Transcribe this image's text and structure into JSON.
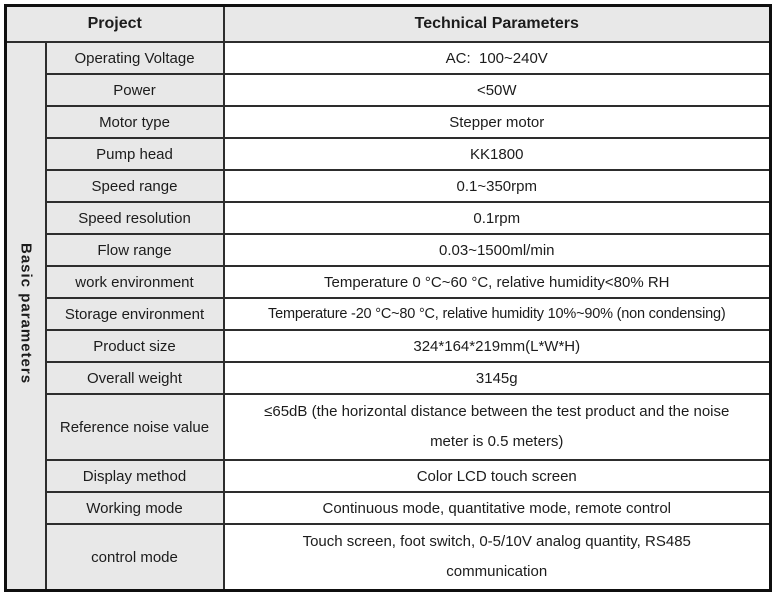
{
  "header": {
    "project": "Project",
    "technical": "Technical Parameters"
  },
  "group_label": "Basic parameters",
  "colors": {
    "cell_gray": "#e8e8e8",
    "grid_line": "#2d2d2d",
    "outer_border": "#0f0f0f",
    "text": "#1c1c1c"
  },
  "rows": [
    {
      "label": "Operating Voltage",
      "value": "AC:  100~240V"
    },
    {
      "label": "Power",
      "value": "<50W"
    },
    {
      "label": "Motor type",
      "value": "Stepper motor"
    },
    {
      "label": "Pump head",
      "value": "KK1800"
    },
    {
      "label": "Speed range",
      "value": "0.1~350rpm"
    },
    {
      "label": "Speed resolution",
      "value": "0.1rpm"
    },
    {
      "label": "Flow range",
      "value": "0.03~1500ml/min"
    },
    {
      "label": "work environment",
      "value": "Temperature 0 °C~60 °C, relative humidity<80% RH"
    },
    {
      "label": "Storage environment",
      "value": "Temperature -20 °C~80 °C, relative humidity 10%~90% (non condensing)"
    },
    {
      "label": "Product size",
      "value": "324*164*219mm(L*W*H)"
    },
    {
      "label": "Overall weight",
      "value": "3145g"
    },
    {
      "label": "Reference noise value",
      "lines": [
        "≤65dB (the horizontal distance between the test product and the noise",
        "meter is 0.5 meters)"
      ]
    },
    {
      "label": "Display method",
      "value": "Color LCD touch screen"
    },
    {
      "label": "Working mode",
      "value": "Continuous mode, quantitative mode, remote control"
    },
    {
      "label": "control mode",
      "lines": [
        "Touch screen, foot switch, 0-5/10V analog quantity, RS485",
        "communication"
      ]
    }
  ]
}
